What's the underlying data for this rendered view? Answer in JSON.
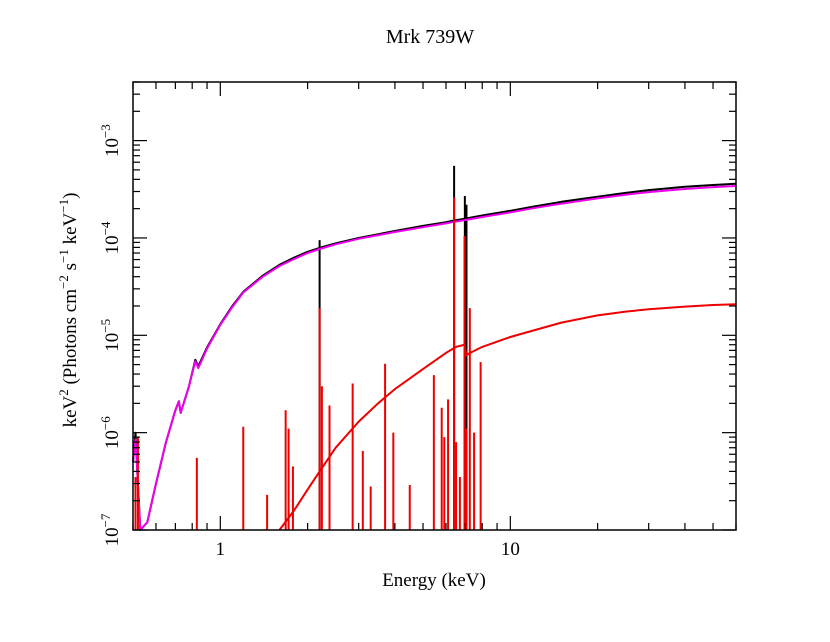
{
  "chart_data": {
    "type": "line",
    "title": "Mrk 739W",
    "xlabel": "Energy (keV)",
    "ylabel_parts": [
      "keV",
      "2",
      " (Photons cm",
      "−2",
      " s",
      "−1",
      " keV",
      "−1",
      ")"
    ],
    "x_scale": "log",
    "y_scale": "log",
    "xlim": [
      0.5,
      60
    ],
    "ylim": [
      1e-07,
      0.004
    ],
    "x_tick_labels": [
      {
        "value": 1,
        "label": "1"
      },
      {
        "value": 10,
        "label": "10"
      }
    ],
    "y_tick_labels": [
      {
        "value": 1e-07,
        "base": "10",
        "exp": "−7"
      },
      {
        "value": 1e-06,
        "base": "10",
        "exp": "−6"
      },
      {
        "value": 1e-05,
        "base": "10",
        "exp": "−5"
      },
      {
        "value": 0.0001,
        "base": "10",
        "exp": "−4"
      },
      {
        "value": 0.001,
        "base": "10",
        "exp": "−3"
      }
    ],
    "grid": false,
    "legend": "none",
    "series": [
      {
        "color": "#000000",
        "points": [
          [
            0.5,
            5e-07
          ],
          [
            0.51,
            1e-06
          ],
          [
            0.52,
            3e-07
          ],
          [
            0.53,
            1e-07
          ],
          [
            0.56,
            1.2e-07
          ],
          [
            0.6,
            3e-07
          ],
          [
            0.65,
            8e-07
          ],
          [
            0.7,
            1.7e-06
          ],
          [
            0.72,
            2.1e-06
          ],
          [
            0.73,
            1.6e-06
          ],
          [
            0.78,
            3e-06
          ],
          [
            0.82,
            5.6e-06
          ],
          [
            0.84,
            4.8e-06
          ],
          [
            0.9,
            7.5e-06
          ],
          [
            1.0,
            1.3e-05
          ],
          [
            1.1,
            2e-05
          ],
          [
            1.2,
            2.8e-05
          ],
          [
            1.4,
            4.1e-05
          ],
          [
            1.6,
            5.3e-05
          ],
          [
            1.8,
            6.3e-05
          ],
          [
            2.0,
            7.2e-05
          ],
          [
            2.2,
            7.9e-05
          ],
          [
            2.5,
            8.8e-05
          ],
          [
            3.0,
            0.0001
          ],
          [
            4.0,
            0.000118
          ],
          [
            5.0,
            0.000133
          ],
          [
            6.0,
            0.000145
          ],
          [
            6.3,
            0.00015
          ],
          [
            7.0,
            0.000158
          ],
          [
            8.0,
            0.00017
          ],
          [
            10,
            0.00019
          ],
          [
            12,
            0.00021
          ],
          [
            15,
            0.000235
          ],
          [
            20,
            0.000265
          ],
          [
            25,
            0.00029
          ],
          [
            30,
            0.00031
          ],
          [
            40,
            0.000335
          ],
          [
            50,
            0.00035
          ],
          [
            60,
            0.00036
          ]
        ],
        "lines": [
          [
            2.2,
            9.5e-05
          ],
          [
            6.4,
            0.00055
          ],
          [
            6.97,
            0.00027
          ],
          [
            7.06,
            0.00022
          ]
        ]
      },
      {
        "color": "#ee00ee",
        "points": [
          [
            0.5,
            5e-07
          ],
          [
            0.51,
            8.5e-07
          ],
          [
            0.52,
            3e-07
          ],
          [
            0.53,
            1e-07
          ],
          [
            0.56,
            1.2e-07
          ],
          [
            0.6,
            3e-07
          ],
          [
            0.65,
            8e-07
          ],
          [
            0.7,
            1.7e-06
          ],
          [
            0.72,
            2.1e-06
          ],
          [
            0.73,
            1.6e-06
          ],
          [
            0.78,
            3e-06
          ],
          [
            0.82,
            5.4e-06
          ],
          [
            0.84,
            4.6e-06
          ],
          [
            0.9,
            7.3e-06
          ],
          [
            1.0,
            1.28e-05
          ],
          [
            1.1,
            1.95e-05
          ],
          [
            1.2,
            2.75e-05
          ],
          [
            1.4,
            4e-05
          ],
          [
            1.6,
            5.15e-05
          ],
          [
            1.8,
            6.1e-05
          ],
          [
            2.0,
            7e-05
          ],
          [
            2.2,
            7.7e-05
          ],
          [
            2.5,
            8.6e-05
          ],
          [
            3.0,
            9.8e-05
          ],
          [
            4.0,
            0.000115
          ],
          [
            5.0,
            0.000129
          ],
          [
            6.0,
            0.000141
          ],
          [
            6.3,
            0.000145
          ],
          [
            7.0,
            0.000153
          ],
          [
            8.0,
            0.000164
          ],
          [
            10,
            0.000183
          ],
          [
            12,
            0.000202
          ],
          [
            15,
            0.000225
          ],
          [
            20,
            0.000255
          ],
          [
            25,
            0.000278
          ],
          [
            30,
            0.000296
          ],
          [
            40,
            0.000318
          ],
          [
            50,
            0.000333
          ],
          [
            60,
            0.000342
          ]
        ],
        "lines": []
      },
      {
        "color": "#ee0000",
        "points": [
          [
            1.6,
            1e-07
          ],
          [
            1.8,
            1.6e-07
          ],
          [
            2.0,
            2.6e-07
          ],
          [
            2.2,
            4e-07
          ],
          [
            2.5,
            7e-07
          ],
          [
            3.0,
            1.3e-06
          ],
          [
            3.5,
            2e-06
          ],
          [
            4.0,
            2.8e-06
          ],
          [
            5.0,
            4.5e-06
          ],
          [
            6.0,
            6.6e-06
          ],
          [
            6.5,
            7.6e-06
          ],
          [
            6.95,
            8e-06
          ],
          [
            7.05,
            6.2e-06
          ],
          [
            7.2,
            6.5e-06
          ],
          [
            8.0,
            7.6e-06
          ],
          [
            10,
            9.6e-06
          ],
          [
            12,
            1.12e-05
          ],
          [
            15,
            1.35e-05
          ],
          [
            20,
            1.6e-05
          ],
          [
            25,
            1.75e-05
          ],
          [
            30,
            1.85e-05
          ],
          [
            40,
            1.97e-05
          ],
          [
            50,
            2.05e-05
          ],
          [
            60,
            2.08e-05
          ]
        ],
        "lines": [
          [
            0.51,
            3.5e-07
          ],
          [
            0.52,
            9e-07
          ],
          [
            0.83,
            5.5e-07
          ],
          [
            1.2,
            1.15e-06
          ],
          [
            1.45,
            2.3e-07
          ],
          [
            1.68,
            1.7e-06
          ],
          [
            1.72,
            1.1e-06
          ],
          [
            1.78,
            4.5e-07
          ],
          [
            2.2,
            1.9e-05
          ],
          [
            2.24,
            3e-06
          ],
          [
            2.38,
            1.9e-06
          ],
          [
            2.86,
            3.2e-06
          ],
          [
            3.1,
            6.5e-07
          ],
          [
            3.3,
            2.8e-07
          ],
          [
            3.7,
            5.1e-06
          ],
          [
            3.95,
            1e-06
          ],
          [
            4.5,
            2.9e-07
          ],
          [
            5.45,
            3.9e-06
          ],
          [
            5.8,
            1.8e-06
          ],
          [
            5.92,
            9e-07
          ],
          [
            6.1,
            2.2e-06
          ],
          [
            6.4,
            0.00026
          ],
          [
            6.5,
            8e-07
          ],
          [
            6.7,
            3.5e-07
          ],
          [
            6.95,
            0.000105
          ],
          [
            7.06,
            1.1e-06
          ],
          [
            7.25,
            1.9e-05
          ],
          [
            7.5,
            1e-06
          ],
          [
            7.9,
            5.3e-06
          ]
        ]
      }
    ]
  }
}
